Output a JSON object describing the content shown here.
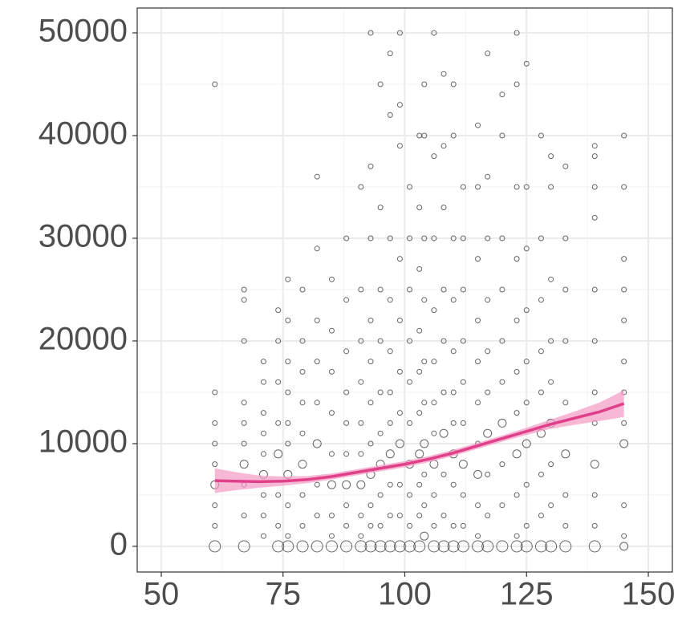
{
  "chart_data": {
    "type": "scatter",
    "xlim": [
      45.06,
      154.94
    ],
    "ylim": [
      -2500,
      52422
    ],
    "xticks": [
      50,
      75,
      100,
      125,
      150
    ],
    "yticks": [
      0,
      10000,
      20000,
      30000,
      40000,
      50000
    ],
    "grid": true,
    "minor_grid": true,
    "color": "#333333",
    "x": [
      61,
      61,
      61,
      61,
      61,
      61,
      61,
      61,
      61,
      67,
      67,
      67,
      67,
      67,
      67,
      67,
      67,
      67,
      67,
      71,
      71,
      71,
      71,
      71,
      71,
      71,
      71,
      71,
      74,
      74,
      74,
      74,
      74,
      74,
      74,
      74,
      76,
      76,
      76,
      76,
      76,
      76,
      76,
      76,
      76,
      76,
      79,
      79,
      79,
      79,
      79,
      79,
      79,
      79,
      79,
      82,
      82,
      82,
      82,
      82,
      82,
      82,
      82,
      82,
      85,
      85,
      85,
      85,
      85,
      85,
      85,
      85,
      85,
      88,
      88,
      88,
      88,
      88,
      88,
      88,
      88,
      88,
      88,
      91,
      91,
      91,
      91,
      91,
      91,
      91,
      91,
      91,
      91,
      93,
      93,
      93,
      93,
      93,
      93,
      93,
      93,
      93,
      93,
      93,
      95,
      95,
      95,
      95,
      95,
      95,
      95,
      95,
      95,
      95,
      97,
      97,
      97,
      97,
      97,
      97,
      97,
      97,
      97,
      97,
      97,
      99,
      99,
      99,
      99,
      99,
      99,
      99,
      99,
      99,
      99,
      99,
      101,
      101,
      101,
      101,
      101,
      101,
      101,
      101,
      101,
      101,
      103,
      103,
      103,
      103,
      103,
      103,
      103,
      103,
      103,
      103,
      104,
      104,
      104,
      104,
      104,
      104,
      104,
      104,
      104,
      104,
      106,
      106,
      106,
      106,
      106,
      106,
      106,
      106,
      106,
      106,
      106,
      108,
      108,
      108,
      108,
      108,
      108,
      108,
      108,
      108,
      108,
      110,
      110,
      110,
      110,
      110,
      110,
      110,
      110,
      110,
      110,
      110,
      112,
      112,
      112,
      112,
      112,
      112,
      112,
      112,
      112,
      112,
      115,
      115,
      115,
      115,
      115,
      115,
      115,
      115,
      115,
      115,
      115,
      117,
      117,
      117,
      117,
      117,
      117,
      117,
      117,
      117,
      117,
      120,
      120,
      120,
      120,
      120,
      120,
      120,
      120,
      120,
      120,
      123,
      123,
      123,
      123,
      123,
      123,
      123,
      123,
      123,
      123,
      123,
      125,
      125,
      125,
      125,
      125,
      125,
      125,
      125,
      125,
      125,
      128,
      128,
      128,
      128,
      128,
      128,
      128,
      128,
      128,
      130,
      130,
      130,
      130,
      130,
      130,
      130,
      130,
      130,
      133,
      133,
      133,
      133,
      133,
      133,
      133,
      133,
      133,
      139,
      139,
      139,
      139,
      139,
      139,
      139,
      139,
      139,
      139,
      139,
      139,
      145,
      145,
      145,
      145,
      145,
      145,
      145,
      145,
      145,
      145,
      145,
      145
    ],
    "values": [
      45000,
      15000,
      12000,
      10000,
      8000,
      6000,
      4000,
      2000,
      0,
      25000,
      24000,
      20000,
      14000,
      12000,
      10000,
      8000,
      6000,
      3000,
      0,
      18000,
      16000,
      13000,
      11000,
      9000,
      7000,
      5000,
      3000,
      1000,
      23000,
      20000,
      16000,
      12000,
      9000,
      5000,
      2000,
      0,
      26000,
      22000,
      18000,
      15000,
      12000,
      10000,
      7000,
      4000,
      1000,
      0,
      25000,
      20000,
      17000,
      14000,
      11000,
      8000,
      5000,
      2000,
      0,
      36000,
      29000,
      22000,
      18000,
      14000,
      10000,
      6000,
      3000,
      0,
      26000,
      21000,
      17000,
      13000,
      9000,
      6000,
      3000,
      1000,
      0,
      30000,
      24000,
      19000,
      15000,
      12000,
      9000,
      6000,
      4000,
      2000,
      0,
      35000,
      25000,
      20000,
      16000,
      12000,
      9000,
      6000,
      3000,
      1000,
      0,
      50000,
      37000,
      30000,
      22000,
      18000,
      14000,
      10000,
      7000,
      4000,
      2000,
      0,
      45000,
      33000,
      25000,
      20000,
      15000,
      11000,
      8000,
      5000,
      2000,
      0,
      48000,
      42000,
      30000,
      24000,
      19000,
      15000,
      12000,
      9000,
      6000,
      3000,
      0,
      50000,
      43000,
      39000,
      28000,
      22000,
      17000,
      13000,
      10000,
      6000,
      3000,
      0,
      35000,
      30000,
      25000,
      20000,
      16000,
      12000,
      8000,
      5000,
      2000,
      0,
      40000,
      33000,
      27000,
      21000,
      17000,
      13000,
      9000,
      6000,
      3000,
      0,
      45000,
      40000,
      30000,
      24000,
      18000,
      14000,
      10000,
      7000,
      4000,
      1000,
      50000,
      38000,
      30000,
      23000,
      18000,
      14000,
      11000,
      8000,
      5000,
      2000,
      0,
      46000,
      39000,
      33000,
      25000,
      20000,
      15000,
      11000,
      7000,
      3000,
      0,
      45000,
      40000,
      30000,
      24000,
      19000,
      15000,
      12000,
      9000,
      6000,
      2000,
      0,
      35000,
      30000,
      25000,
      20000,
      16000,
      12000,
      8000,
      5000,
      2000,
      0,
      41000,
      35000,
      28000,
      22000,
      18000,
      14000,
      10000,
      7000,
      4000,
      1000,
      0,
      48000,
      36000,
      30000,
      24000,
      19000,
      15000,
      11000,
      7000,
      3000,
      0,
      44000,
      40000,
      30000,
      25000,
      20000,
      16000,
      12000,
      8000,
      4000,
      0,
      50000,
      45000,
      35000,
      28000,
      22000,
      17000,
      13000,
      9000,
      5000,
      1000,
      0,
      47000,
      35000,
      29000,
      23000,
      18000,
      14000,
      10000,
      6000,
      2000,
      0,
      40000,
      30000,
      24000,
      19000,
      15000,
      11000,
      7000,
      3000,
      0,
      38000,
      35000,
      26000,
      20000,
      16000,
      12000,
      8000,
      4000,
      0,
      37000,
      30000,
      25000,
      20000,
      14000,
      9000,
      5000,
      2000,
      0,
      39000,
      38000,
      35000,
      32000,
      25000,
      20000,
      15000,
      12000,
      8000,
      5000,
      2000,
      0,
      40000,
      35000,
      28000,
      25000,
      22000,
      18000,
      15000,
      12000,
      10000,
      4000,
      1000,
      0
    ],
    "sizes": [
      1,
      1,
      1,
      1,
      1,
      2,
      1,
      1,
      3,
      1,
      1,
      1,
      1,
      1,
      1,
      2,
      1,
      1,
      3,
      1,
      1,
      1,
      1,
      1,
      2,
      1,
      1,
      1,
      1,
      1,
      1,
      1,
      2,
      1,
      1,
      3,
      1,
      1,
      1,
      1,
      1,
      1,
      2,
      1,
      1,
      3,
      1,
      1,
      1,
      1,
      1,
      2,
      1,
      1,
      3,
      1,
      1,
      1,
      1,
      1,
      2,
      1,
      1,
      3,
      1,
      1,
      1,
      1,
      1,
      2,
      1,
      1,
      3,
      1,
      1,
      1,
      1,
      1,
      1,
      2,
      1,
      1,
      3,
      1,
      1,
      1,
      1,
      1,
      1,
      2,
      1,
      1,
      3,
      1,
      1,
      1,
      1,
      1,
      1,
      1,
      2,
      1,
      1,
      3,
      1,
      1,
      1,
      1,
      1,
      1,
      2,
      1,
      1,
      3,
      1,
      1,
      1,
      1,
      1,
      1,
      1,
      2,
      1,
      1,
      3,
      1,
      1,
      1,
      1,
      1,
      1,
      1,
      2,
      1,
      1,
      3,
      1,
      1,
      1,
      1,
      1,
      1,
      2,
      1,
      1,
      3,
      1,
      1,
      1,
      1,
      1,
      1,
      2,
      1,
      1,
      3,
      1,
      1,
      1,
      1,
      1,
      1,
      2,
      1,
      1,
      2,
      1,
      1,
      1,
      1,
      1,
      1,
      1,
      2,
      1,
      1,
      3,
      1,
      1,
      1,
      1,
      1,
      1,
      2,
      1,
      1,
      3,
      1,
      1,
      1,
      1,
      1,
      1,
      1,
      2,
      1,
      1,
      3,
      1,
      1,
      1,
      1,
      1,
      1,
      2,
      1,
      1,
      3,
      1,
      1,
      1,
      1,
      1,
      1,
      1,
      2,
      1,
      1,
      3,
      1,
      1,
      1,
      1,
      1,
      1,
      2,
      1,
      1,
      3,
      1,
      1,
      1,
      1,
      1,
      1,
      2,
      1,
      1,
      3,
      1,
      1,
      1,
      1,
      1,
      1,
      1,
      2,
      1,
      1,
      3,
      1,
      1,
      1,
      1,
      1,
      1,
      2,
      1,
      1,
      3,
      1,
      1,
      1,
      1,
      1,
      2,
      1,
      1,
      3,
      1,
      1,
      1,
      1,
      1,
      2,
      1,
      1,
      3,
      1,
      1,
      1,
      1,
      1,
      2,
      1,
      1,
      3,
      1,
      1,
      1,
      1,
      1,
      1,
      1,
      1,
      2,
      1,
      1,
      3,
      1,
      1,
      1,
      1,
      1,
      1,
      1,
      1,
      2,
      1,
      1,
      2
    ],
    "fit": {
      "color": "#e0408a",
      "band_color": "#f49ac4",
      "x": [
        61,
        65,
        70,
        75,
        80,
        85,
        90,
        95,
        100,
        105,
        110,
        115,
        120,
        125,
        130,
        135,
        140,
        145
      ],
      "values": [
        6400,
        6350,
        6300,
        6350,
        6500,
        6800,
        7200,
        7600,
        8000,
        8500,
        9100,
        9800,
        10500,
        11200,
        11900,
        12500,
        13100,
        13900
      ],
      "lower": [
        5200,
        5450,
        5700,
        5900,
        6150,
        6500,
        6900,
        7300,
        7700,
        8200,
        8800,
        9500,
        10200,
        10850,
        11450,
        11850,
        12200,
        12600
      ],
      "upper": [
        7600,
        7250,
        6900,
        6800,
        6850,
        7100,
        7500,
        7900,
        8300,
        8800,
        9400,
        10100,
        10800,
        11550,
        12350,
        13150,
        14000,
        15200
      ]
    }
  }
}
